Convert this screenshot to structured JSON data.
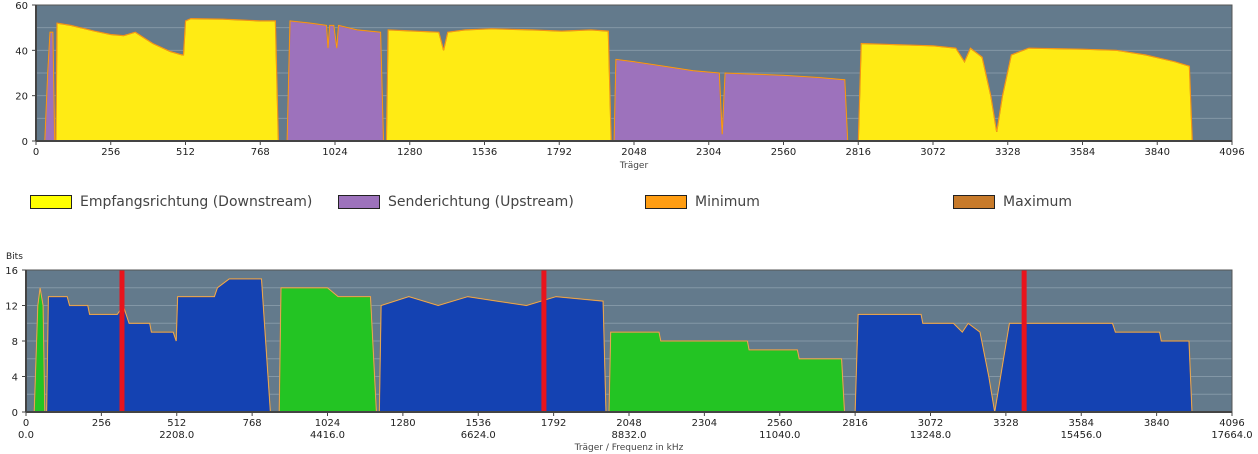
{
  "chart_data": [
    {
      "type": "area",
      "title": "",
      "xlabel": "Träger",
      "ylabel": "",
      "xlim": [
        0,
        4096
      ],
      "ylim": [
        0,
        60
      ],
      "xticks": [
        "0",
        "256",
        "512",
        "768",
        "1024",
        "1280",
        "1536",
        "1792",
        "2048",
        "2304",
        "2560",
        "2816",
        "3072",
        "3328",
        "3584",
        "3840",
        "4096"
      ],
      "yticks": [
        "0",
        "20",
        "40",
        "60"
      ],
      "grid": true,
      "segments": [
        {
          "series": "upstream",
          "points": [
            [
              30,
              0
            ],
            [
              40,
              30
            ],
            [
              48,
              48
            ],
            [
              58,
              48
            ],
            [
              64,
              0
            ]
          ]
        },
        {
          "series": "downstream",
          "points": [
            [
              68,
              0
            ],
            [
              72,
              52
            ],
            [
              120,
              51
            ],
            [
              200,
              48.5
            ],
            [
              256,
              47
            ],
            [
              300,
              46.5
            ],
            [
              340,
              48
            ],
            [
              400,
              43
            ],
            [
              460,
              39.5
            ],
            [
              500,
              38
            ],
            [
              505,
              38
            ],
            [
              512,
              53
            ],
            [
              530,
              54
            ],
            [
              640,
              53.8
            ],
            [
              768,
              53
            ],
            [
              820,
              53
            ],
            [
              830,
              0
            ]
          ]
        },
        {
          "series": "upstream",
          "points": [
            [
              860,
              0
            ],
            [
              870,
              53
            ],
            [
              940,
              52
            ],
            [
              995,
              51
            ],
            [
              1000,
              41
            ],
            [
              1006,
              51
            ],
            [
              1020,
              51
            ],
            [
              1030,
              41
            ],
            [
              1036,
              51
            ],
            [
              1100,
              49
            ],
            [
              1180,
              48
            ],
            [
              1190,
              0
            ]
          ]
        },
        {
          "series": "downstream",
          "points": [
            [
              1200,
              0
            ],
            [
              1206,
              49
            ],
            [
              1300,
              48.5
            ],
            [
              1380,
              48
            ],
            [
              1396,
              40
            ],
            [
              1410,
              48
            ],
            [
              1470,
              49
            ],
            [
              1560,
              49.5
            ],
            [
              1700,
              49
            ],
            [
              1800,
              48.5
            ],
            [
              1900,
              49
            ],
            [
              1960,
              48.5
            ],
            [
              1970,
              0
            ]
          ]
        },
        {
          "series": "upstream",
          "points": [
            [
              1980,
              0
            ],
            [
              1986,
              36
            ],
            [
              2048,
              35
            ],
            [
              2150,
              33
            ],
            [
              2250,
              31
            ],
            [
              2340,
              30
            ],
            [
              2350,
              3
            ],
            [
              2360,
              30
            ],
            [
              2450,
              29.5
            ],
            [
              2560,
              29
            ],
            [
              2680,
              28
            ],
            [
              2770,
              27
            ],
            [
              2780,
              0
            ]
          ]
        },
        {
          "series": "downstream",
          "points": [
            [
              2816,
              0
            ],
            [
              2826,
              43
            ],
            [
              2950,
              42.5
            ],
            [
              3072,
              42
            ],
            [
              3150,
              41
            ],
            [
              3180,
              35
            ],
            [
              3200,
              41
            ],
            [
              3240,
              37
            ],
            [
              3270,
              20
            ],
            [
              3290,
              4
            ],
            [
              3310,
              20
            ],
            [
              3340,
              38
            ],
            [
              3400,
              41
            ],
            [
              3584,
              40.5
            ],
            [
              3700,
              40
            ],
            [
              3800,
              38
            ],
            [
              3900,
              35
            ],
            [
              3950,
              33
            ],
            [
              3960,
              0
            ]
          ]
        }
      ],
      "series_colors": {
        "downstream": "#ffeb14",
        "upstream": "#9d72bc",
        "minimum": "#ff9d12",
        "maximum": "#c77a2a"
      },
      "legend": [
        {
          "key": "downstream",
          "label": "Empfangsrichtung (Downstream)"
        },
        {
          "key": "upstream",
          "label": "Senderichtung (Upstream)"
        },
        {
          "key": "minimum",
          "label": "Minimum"
        },
        {
          "key": "maximum",
          "label": "Maximum"
        }
      ],
      "legend_position": "bottom"
    },
    {
      "type": "area",
      "title": "",
      "xlabel": "Träger / Frequenz in kHz",
      "ylabel": "Bits",
      "xlim": [
        0,
        4096
      ],
      "ylim": [
        0,
        16
      ],
      "xticks": [
        "0",
        "256",
        "512",
        "768",
        "1024",
        "1280",
        "1536",
        "1792",
        "2048",
        "2304",
        "2560",
        "2816",
        "3072",
        "3328",
        "3584",
        "3840",
        "4096"
      ],
      "freq_ticks": [
        "0.0",
        "2208.0",
        "4416.0",
        "6624.0",
        "8832.0",
        "11040.0",
        "13248.0",
        "15456.0",
        "17664.0"
      ],
      "yticks": [
        "0",
        "4",
        "8",
        "12",
        "16"
      ],
      "grid": true,
      "markers": [
        326,
        1759,
        3390
      ],
      "segments": [
        {
          "series": "upstream",
          "points": [
            [
              28,
              0
            ],
            [
              40,
              12
            ],
            [
              48,
              14
            ],
            [
              58,
              12
            ],
            [
              64,
              0
            ]
          ]
        },
        {
          "series": "downstream",
          "points": [
            [
              70,
              0
            ],
            [
              76,
              13
            ],
            [
              140,
              13
            ],
            [
              148,
              12
            ],
            [
              210,
              12
            ],
            [
              216,
              11
            ],
            [
              310,
              11
            ],
            [
              330,
              12
            ],
            [
              350,
              10
            ],
            [
              420,
              10
            ],
            [
              426,
              9
            ],
            [
              500,
              9
            ],
            [
              510,
              8
            ],
            [
              515,
              13
            ],
            [
              640,
              13
            ],
            [
              650,
              14
            ],
            [
              690,
              15
            ],
            [
              800,
              15
            ],
            [
              830,
              0
            ]
          ]
        },
        {
          "series": "upstream",
          "points": [
            [
              860,
              0
            ],
            [
              866,
              14
            ],
            [
              960,
              14
            ],
            [
              1000,
              14
            ],
            [
              1024,
              14
            ],
            [
              1060,
              13
            ],
            [
              1170,
              13
            ],
            [
              1190,
              0
            ]
          ]
        },
        {
          "series": "downstream",
          "points": [
            [
              1200,
              0
            ],
            [
              1206,
              12
            ],
            [
              1300,
              13
            ],
            [
              1400,
              12
            ],
            [
              1500,
              13
            ],
            [
              1600,
              12.5
            ],
            [
              1700,
              12
            ],
            [
              1800,
              13
            ],
            [
              1960,
              12.5
            ],
            [
              1970,
              0
            ]
          ]
        },
        {
          "series": "upstream",
          "points": [
            [
              1980,
              0
            ],
            [
              1986,
              9
            ],
            [
              2150,
              9
            ],
            [
              2156,
              8
            ],
            [
              2450,
              8
            ],
            [
              2456,
              7
            ],
            [
              2620,
              7
            ],
            [
              2626,
              6
            ],
            [
              2770,
              6
            ],
            [
              2780,
              0
            ]
          ]
        },
        {
          "series": "downstream",
          "points": [
            [
              2816,
              0
            ],
            [
              2826,
              11
            ],
            [
              3040,
              11
            ],
            [
              3046,
              10
            ],
            [
              3150,
              10
            ],
            [
              3180,
              9
            ],
            [
              3200,
              10
            ],
            [
              3240,
              9
            ],
            [
              3270,
              4
            ],
            [
              3290,
              0
            ],
            [
              3310,
              4
            ],
            [
              3340,
              10
            ],
            [
              3600,
              10
            ],
            [
              3690,
              10
            ],
            [
              3700,
              9
            ],
            [
              3850,
              9
            ],
            [
              3856,
              8
            ],
            [
              3950,
              8
            ],
            [
              3960,
              0
            ]
          ]
        }
      ],
      "series_colors": {
        "downstream": "#1442b2",
        "upstream": "#23c423",
        "minimum": "#e8b060",
        "maximum": "#c77a2a",
        "marker": "#e8141c"
      }
    }
  ]
}
